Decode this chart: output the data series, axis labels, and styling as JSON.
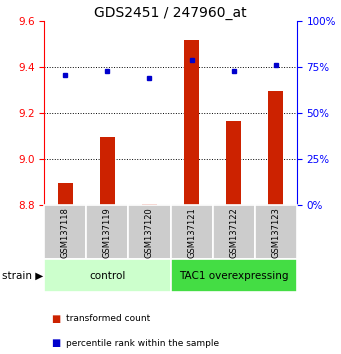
{
  "title": "GDS2451 / 247960_at",
  "samples": [
    "GSM137118",
    "GSM137119",
    "GSM137120",
    "GSM137121",
    "GSM137122",
    "GSM137123"
  ],
  "red_values": [
    8.895,
    9.095,
    8.805,
    9.52,
    9.165,
    9.295
  ],
  "blue_values": [
    71,
    73,
    69,
    79,
    73,
    76
  ],
  "ylim_left": [
    8.8,
    9.6
  ],
  "ylim_right": [
    0,
    100
  ],
  "yticks_left": [
    8.8,
    9.0,
    9.2,
    9.4,
    9.6
  ],
  "yticks_right": [
    0,
    25,
    50,
    75,
    100
  ],
  "groups": [
    {
      "label": "control",
      "indices": [
        0,
        1,
        2
      ],
      "color": "#ccffcc"
    },
    {
      "label": "TAC1 overexpressing",
      "indices": [
        3,
        4,
        5
      ],
      "color": "#44dd44"
    }
  ],
  "bar_color": "#cc2200",
  "point_color": "#0000cc",
  "bar_width": 0.35,
  "sample_row_color": "#cccccc",
  "legend_red_label": "transformed count",
  "legend_blue_label": "percentile rank within the sample",
  "strain_label": "strain",
  "title_fontsize": 10
}
